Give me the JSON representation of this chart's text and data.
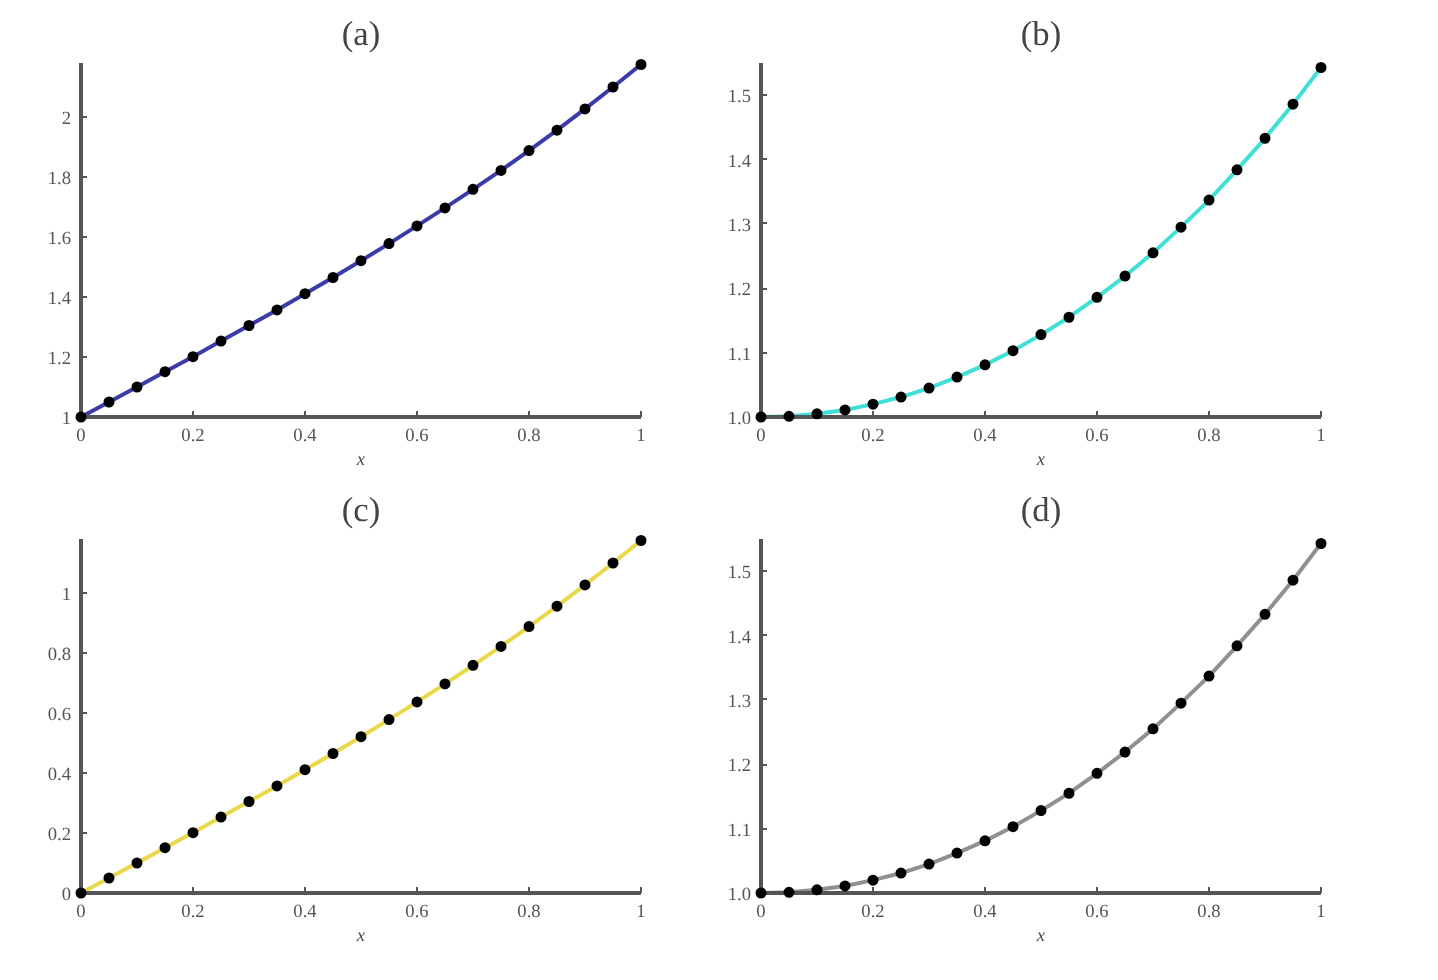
{
  "chart_data": [
    {
      "type": "line",
      "title": "(a)",
      "xlabel": "x",
      "xlim": [
        0,
        1
      ],
      "ylim": [
        1,
        2.18
      ],
      "xticks": [
        0,
        0.2,
        0.4,
        0.6,
        0.8,
        1
      ],
      "yticks": [
        1,
        1.2,
        1.4,
        1.6,
        1.8,
        2
      ],
      "grid": false,
      "x": [
        0,
        0.05,
        0.1,
        0.15,
        0.2,
        0.25,
        0.3,
        0.35,
        0.4,
        0.45,
        0.5,
        0.55,
        0.6,
        0.65,
        0.7,
        0.75,
        0.8,
        0.85,
        0.9,
        0.95,
        1
      ],
      "series": [
        {
          "color": "#3c3ca8",
          "values": [
            1.0,
            1.05,
            1.1,
            1.151,
            1.201,
            1.253,
            1.305,
            1.357,
            1.411,
            1.465,
            1.521,
            1.578,
            1.637,
            1.697,
            1.759,
            1.822,
            1.888,
            1.956,
            2.027,
            2.1,
            2.175
          ]
        },
        {
          "type": "scatter",
          "marker": "circle",
          "color": "#000000",
          "values": [
            1.0,
            1.05,
            1.1,
            1.151,
            1.201,
            1.253,
            1.305,
            1.357,
            1.411,
            1.465,
            1.521,
            1.578,
            1.637,
            1.697,
            1.759,
            1.822,
            1.888,
            1.956,
            2.027,
            2.1,
            2.175
          ]
        }
      ]
    },
    {
      "type": "line",
      "title": "(b)",
      "xlabel": "x",
      "xlim": [
        0,
        1
      ],
      "ylim": [
        1,
        1.55
      ],
      "xticks": [
        0,
        0.2,
        0.4,
        0.6,
        0.8,
        1
      ],
      "yticks": [
        {
          "value": 1,
          "label": "1.0"
        },
        1.1,
        1.2,
        1.3,
        1.4,
        1.5
      ],
      "grid": false,
      "x": [
        0,
        0.05,
        0.1,
        0.15,
        0.2,
        0.25,
        0.3,
        0.35,
        0.4,
        0.45,
        0.5,
        0.55,
        0.6,
        0.65,
        0.7,
        0.75,
        0.8,
        0.85,
        0.9,
        0.95,
        1
      ],
      "series": [
        {
          "color": "#40e0d8",
          "values": [
            1.0,
            1.001,
            1.005,
            1.011,
            1.02,
            1.031,
            1.045,
            1.062,
            1.081,
            1.103,
            1.128,
            1.155,
            1.186,
            1.219,
            1.255,
            1.295,
            1.337,
            1.384,
            1.433,
            1.486,
            1.543
          ]
        },
        {
          "type": "scatter",
          "marker": "circle",
          "color": "#000000",
          "values": [
            1.0,
            1.001,
            1.005,
            1.011,
            1.02,
            1.031,
            1.045,
            1.062,
            1.081,
            1.103,
            1.128,
            1.155,
            1.186,
            1.219,
            1.255,
            1.295,
            1.337,
            1.384,
            1.433,
            1.486,
            1.543
          ]
        }
      ]
    },
    {
      "type": "line",
      "title": "(c)",
      "xlabel": "x",
      "xlim": [
        0,
        1
      ],
      "ylim": [
        0,
        1.18
      ],
      "xticks": [
        0,
        0.2,
        0.4,
        0.6,
        0.8,
        1
      ],
      "yticks": [
        0,
        0.2,
        0.4,
        0.6,
        0.8,
        1
      ],
      "grid": false,
      "x": [
        0,
        0.05,
        0.1,
        0.15,
        0.2,
        0.25,
        0.3,
        0.35,
        0.4,
        0.45,
        0.5,
        0.55,
        0.6,
        0.65,
        0.7,
        0.75,
        0.8,
        0.85,
        0.9,
        0.95,
        1
      ],
      "series": [
        {
          "color": "#e8d84a",
          "values": [
            0.0,
            0.05,
            0.1,
            0.151,
            0.201,
            0.253,
            0.305,
            0.357,
            0.411,
            0.465,
            0.521,
            0.578,
            0.637,
            0.697,
            0.759,
            0.822,
            0.888,
            0.956,
            1.027,
            1.1,
            1.175
          ]
        },
        {
          "type": "scatter",
          "marker": "circle",
          "color": "#000000",
          "values": [
            0.0,
            0.05,
            0.1,
            0.151,
            0.201,
            0.253,
            0.305,
            0.357,
            0.411,
            0.465,
            0.521,
            0.578,
            0.637,
            0.697,
            0.759,
            0.822,
            0.888,
            0.956,
            1.027,
            1.1,
            1.175
          ]
        }
      ]
    },
    {
      "type": "line",
      "title": "(d)",
      "xlabel": "x",
      "xlim": [
        0,
        1
      ],
      "ylim": [
        1,
        1.55
      ],
      "xticks": [
        0,
        0.2,
        0.4,
        0.6,
        0.8,
        1
      ],
      "yticks": [
        {
          "value": 1,
          "label": "1.0"
        },
        1.1,
        1.2,
        1.3,
        1.4,
        1.5
      ],
      "grid": false,
      "x": [
        0,
        0.05,
        0.1,
        0.15,
        0.2,
        0.25,
        0.3,
        0.35,
        0.4,
        0.45,
        0.5,
        0.55,
        0.6,
        0.65,
        0.7,
        0.75,
        0.8,
        0.85,
        0.9,
        0.95,
        1
      ],
      "series": [
        {
          "color": "#909090",
          "values": [
            1.0,
            1.001,
            1.005,
            1.011,
            1.02,
            1.031,
            1.045,
            1.062,
            1.081,
            1.103,
            1.128,
            1.155,
            1.186,
            1.219,
            1.255,
            1.295,
            1.337,
            1.384,
            1.433,
            1.486,
            1.543
          ]
        },
        {
          "type": "scatter",
          "marker": "circle",
          "color": "#000000",
          "values": [
            1.0,
            1.001,
            1.005,
            1.011,
            1.02,
            1.031,
            1.045,
            1.062,
            1.081,
            1.103,
            1.128,
            1.155,
            1.186,
            1.219,
            1.255,
            1.295,
            1.337,
            1.384,
            1.433,
            1.486,
            1.543
          ]
        }
      ]
    }
  ]
}
